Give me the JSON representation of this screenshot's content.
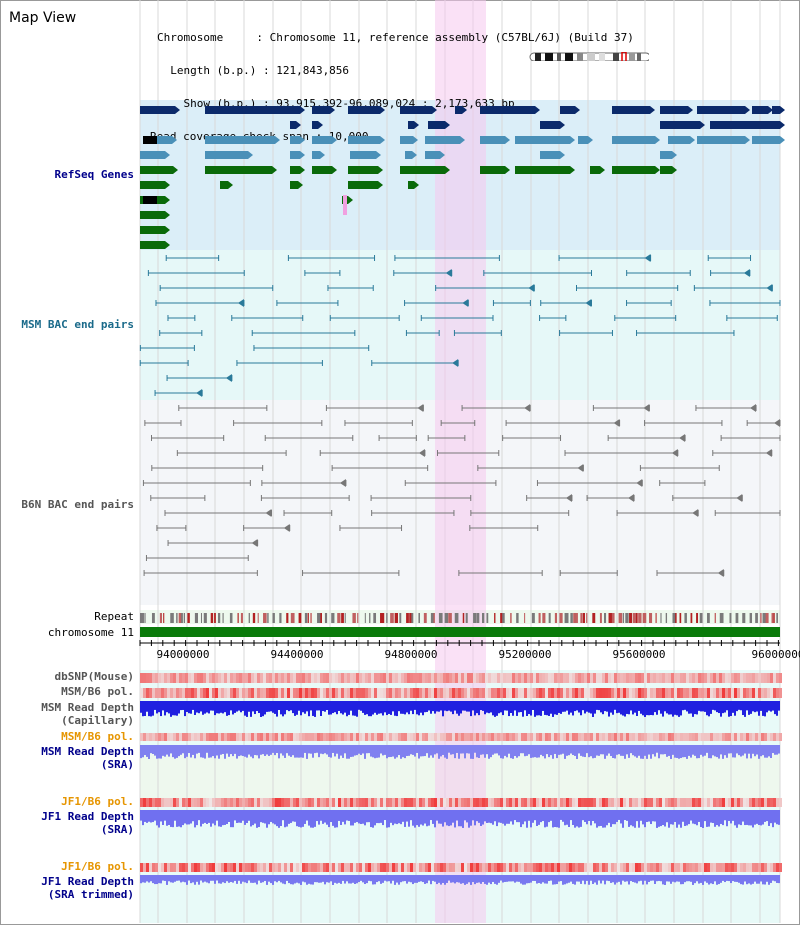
{
  "title": "Map View",
  "info": {
    "chromosome_line": "Chromosome     : Chromosome 11, reference assembly (C57BL/6J) (Build 37)",
    "length_line": "  Length (b.p.) : 121,843,856",
    "show_line": "    Show (b.p.) : 93,915,392-96,089,024 : 2,173,633 bp",
    "coverage_line": "Read coverage check span : 10,000"
  },
  "tracks": {
    "refseq": "RefSeq Genes",
    "msm_bac": "MSM BAC end pairs",
    "b6n_bac": "B6N BAC end pairs",
    "repeat": "Repeat",
    "chromosome": "chromosome 11",
    "dbsnp": "dbSNP(Mouse)",
    "msm_b6_pol_1": "MSM/B6 pol.",
    "msm_depth_cap_1": "MSM Read Depth",
    "msm_depth_cap_2": "(Capillary)",
    "msm_b6_pol_2": "MSM/B6 pol.",
    "msm_depth_sra_1": "MSM Read Depth",
    "msm_depth_sra_2": "(SRA)",
    "jf1_b6_pol_1": "JF1/B6 pol.",
    "jf1_depth_sra_1": "JF1 Read Depth",
    "jf1_depth_sra_2": "(SRA)",
    "jf1_b6_pol_2": "JF1/B6 pol.",
    "jf1_depth_trim_1": "JF1 Read Depth",
    "jf1_depth_trim_2": "(SRA trimmed)"
  },
  "axis_ticks": [
    "94000000",
    "94400000",
    "94800000",
    "95200000",
    "95600000",
    "96000000"
  ],
  "colors": {
    "refseq_dark": "#0b2a6b",
    "refseq_light": "#4a90b8",
    "refseq_green": "#0a6a0a",
    "msm_bac": "#2a7a9a",
    "b6n_bac": "#777777",
    "highlight": "#f6c8ef",
    "chromosome_bar": "#0a7a0a",
    "label_blue": "#00008b",
    "label_orange": "#e69500",
    "label_teal": "#1a6a8a"
  }
}
